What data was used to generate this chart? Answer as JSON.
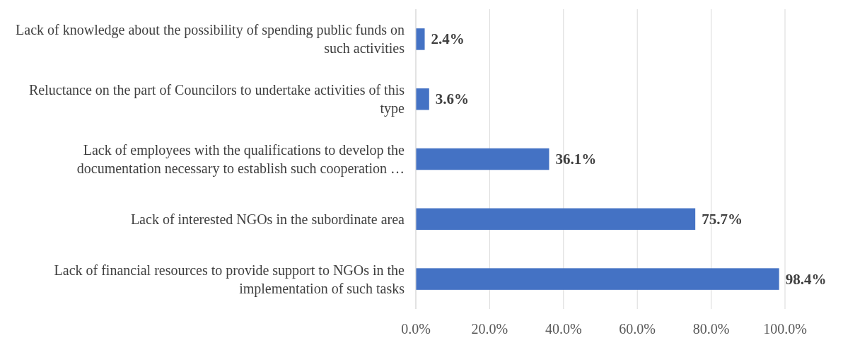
{
  "chart_data": {
    "type": "bar",
    "orientation": "horizontal",
    "categories": [
      "Lack of knowledge about the possibility of spending public funds on such activities",
      "Reluctance on the part of Councilors to undertake activities of this type",
      "Lack of employees with the qualifications to develop the documentation necessary to establish such cooperation …",
      "Lack of interested NGOs in the subordinate area",
      "Lack of financial resources to provide support to NGOs in the implementation of such tasks"
    ],
    "values": [
      2.4,
      3.6,
      36.1,
      75.7,
      98.4
    ],
    "value_labels": [
      "2.4%",
      "3.6%",
      "36.1%",
      "75.7%",
      "98.4%"
    ],
    "color": "#4472c4",
    "xlim": [
      0,
      100
    ],
    "xticks": [
      {
        "value": 0,
        "label": "0.0%"
      },
      {
        "value": 20,
        "label": "20.0%"
      },
      {
        "value": 40,
        "label": "40.0%"
      },
      {
        "value": 60,
        "label": "60.0%"
      },
      {
        "value": 80,
        "label": "80.0%"
      },
      {
        "value": 100,
        "label": "100.0%"
      }
    ],
    "grid": "x"
  }
}
